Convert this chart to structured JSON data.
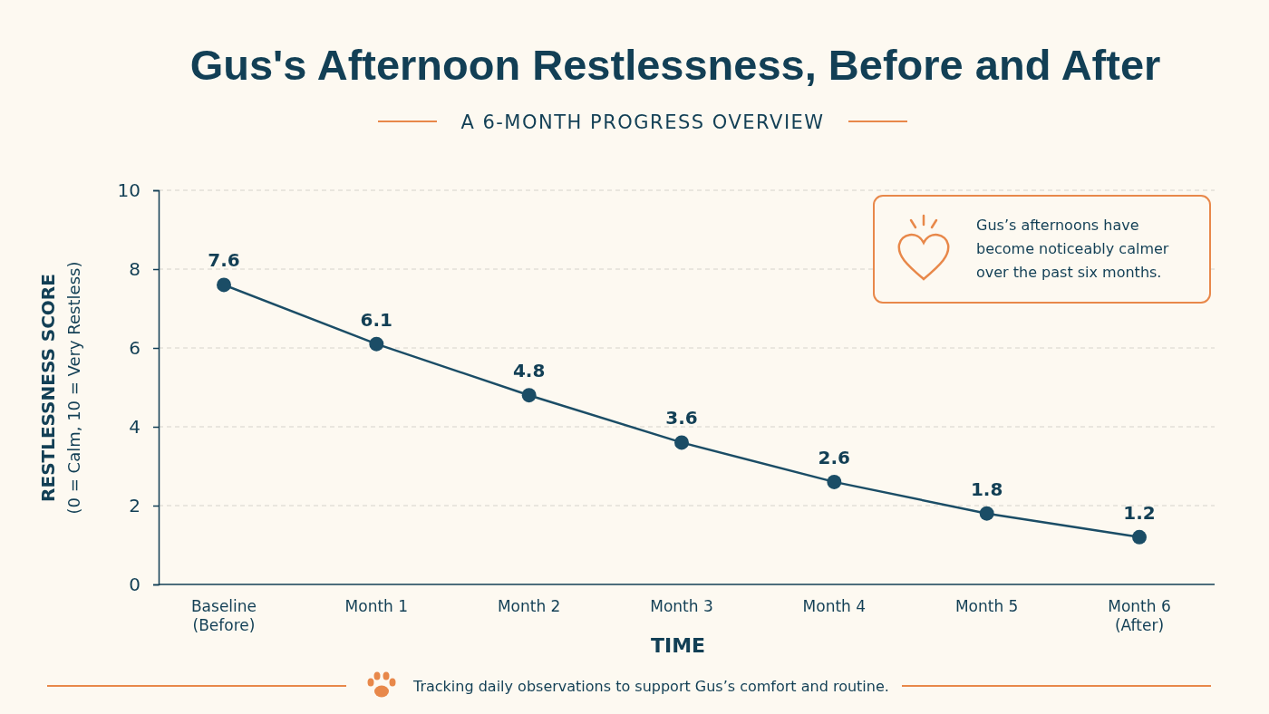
{
  "chart_data": {
    "type": "line",
    "title": "Gus's Afternoon Restlessness, Before and After",
    "subtitle": "A 6-MONTH PROGRESS OVERVIEW",
    "xlabel": "TIME",
    "ylabel": "RESTLESSNESS SCORE\n(0 = Calm, 10 = Very Restless)",
    "categories": [
      "Baseline\n(Before)",
      "Month 1",
      "Month 2",
      "Month 3",
      "Month 4",
      "Month 5",
      "Month 6\n(After)"
    ],
    "series": [
      {
        "color": "#1b4d66",
        "values": [
          7.6,
          6.1,
          4.8,
          3.6,
          2.6,
          1.8,
          1.2
        ]
      }
    ],
    "ylim": [
      0,
      10
    ],
    "yticks": [
      0,
      2,
      4,
      6,
      8,
      10
    ],
    "grid": "y",
    "marker": "circle",
    "line_style": "solid",
    "data_labels": true,
    "annotations": [
      "Gus’s afternoons have become noticeably calmer over the past six months.",
      "Tracking daily observations to support Gus’s comfort and routine."
    ]
  }
}
